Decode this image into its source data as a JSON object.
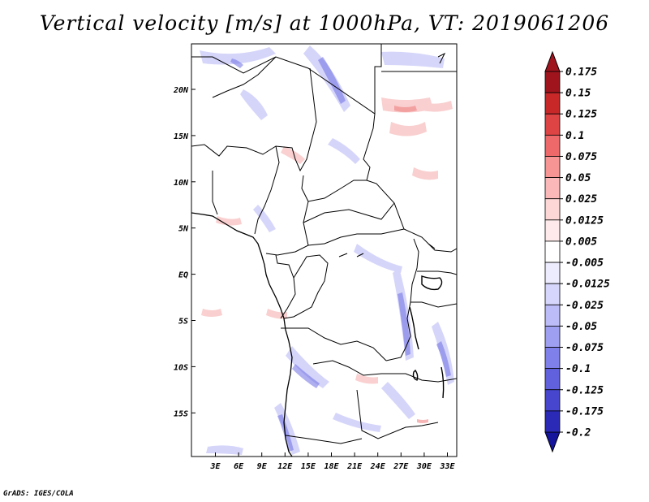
{
  "title": "Vertical velocity [m/s] at 1000hPa, VT: 2019061206",
  "credit": "GrADS: IGES/COLA",
  "map": {
    "lat_labels": [
      "20N",
      "15N",
      "10N",
      "5N",
      "EQ",
      "5S",
      "10S",
      "15S"
    ],
    "lon_labels": [
      "3E",
      "6E",
      "9E",
      "12E",
      "15E",
      "18E",
      "21E",
      "24E",
      "27E",
      "30E",
      "33E"
    ]
  },
  "colorbar": {
    "levels": [
      "0.175",
      "0.15",
      "0.125",
      "0.1",
      "0.075",
      "0.05",
      "0.025",
      "0.0125",
      "0.005",
      "-0.005",
      "-0.0125",
      "-0.025",
      "-0.05",
      "-0.075",
      "-0.1",
      "-0.125",
      "-0.175",
      "-0.2"
    ],
    "colors": [
      "#a0141e",
      "#c82828",
      "#de4444",
      "#ee6a6a",
      "#f79494",
      "#fbb8b8",
      "#fdd6d6",
      "#feeaea",
      "#ffffff",
      "#ececfe",
      "#d6d6fc",
      "#bcbcf8",
      "#9f9ff2",
      "#8080ea",
      "#6161de",
      "#4646ce",
      "#2a2ab6",
      "#14149c"
    ],
    "top_arrow_color": "#a0141e",
    "bottom_arrow_color": "#14149c"
  }
}
